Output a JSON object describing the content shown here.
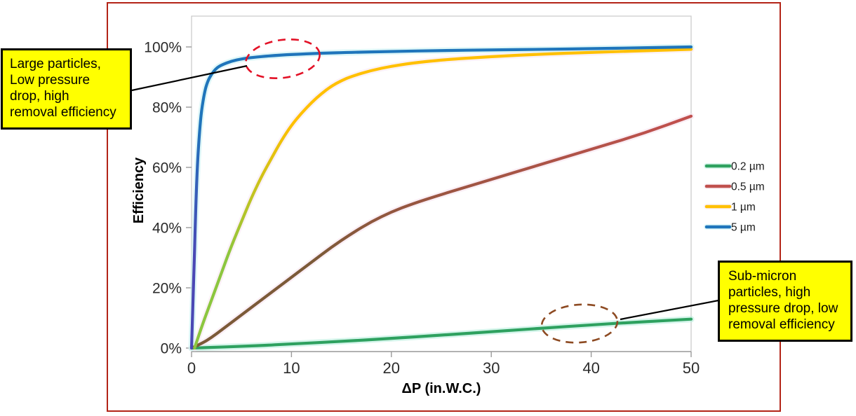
{
  "figure": {
    "border_color": "#b32417",
    "background": "#ffffff"
  },
  "callouts": {
    "left": {
      "text": "Large particles,\nLow pressure\ndrop, high\nremoval efficiency",
      "bg": "#ffff00",
      "ellipse_color": "#e31227"
    },
    "right": {
      "text": "Sub-micron\nparticles, high\npressure drop, low\nremoval efficiency",
      "bg": "#ffff00",
      "ellipse_color": "#8d4a22"
    }
  },
  "chart_data": {
    "type": "line",
    "title": "",
    "xlabel": "ΔP (in.W.C.)",
    "ylabel": "Efficiency",
    "xlim": [
      0,
      50
    ],
    "ylim": [
      0,
      100
    ],
    "x_ticks": [
      "0",
      "10",
      "20",
      "30",
      "40",
      "50"
    ],
    "x_tick_values": [
      0,
      10,
      20,
      30,
      40,
      50
    ],
    "y_tick_labels": [
      "0%",
      "20%",
      "40%",
      "60%",
      "80%",
      "100%"
    ],
    "y_tick_values": [
      0,
      20,
      40,
      60,
      80,
      100
    ],
    "grid": false,
    "legend_position": "right-outside",
    "series": [
      {
        "name": "0.2 µm",
        "color": "#2ea15f",
        "glow": "#b9eedd",
        "points": [
          [
            0,
            0
          ],
          [
            2,
            0.2
          ],
          [
            5,
            0.6
          ],
          [
            8,
            1
          ],
          [
            10,
            1.4
          ],
          [
            15,
            2.2
          ],
          [
            20,
            3.2
          ],
          [
            25,
            4.3
          ],
          [
            30,
            5.4
          ],
          [
            35,
            6.6
          ],
          [
            40,
            7.7
          ],
          [
            45,
            8.7
          ],
          [
            50,
            9.6
          ]
        ]
      },
      {
        "name": "0.5 µm",
        "color": "#c0504d",
        "color_low": "#7c5a38",
        "glow": "#f6e3ee",
        "points": [
          [
            0,
            0
          ],
          [
            1,
            1.5
          ],
          [
            2,
            3.5
          ],
          [
            3,
            6
          ],
          [
            5,
            11
          ],
          [
            7,
            16
          ],
          [
            9,
            21
          ],
          [
            10,
            23.5
          ],
          [
            12,
            28.5
          ],
          [
            14,
            33.5
          ],
          [
            16,
            38
          ],
          [
            18,
            42
          ],
          [
            20,
            45.2
          ],
          [
            22,
            47.8
          ],
          [
            25,
            51
          ],
          [
            28,
            54
          ],
          [
            30,
            56
          ],
          [
            35,
            61
          ],
          [
            40,
            66
          ],
          [
            45,
            71
          ],
          [
            50,
            77
          ]
        ]
      },
      {
        "name": "1 µm",
        "color": "#ffc000",
        "color_low": "#8cc63f",
        "glow": "#f8e7f0",
        "points": [
          [
            0.3,
            0
          ],
          [
            1,
            7
          ],
          [
            2,
            16
          ],
          [
            3,
            25
          ],
          [
            4,
            34
          ],
          [
            5,
            42
          ],
          [
            6,
            50
          ],
          [
            7,
            57
          ],
          [
            8,
            63
          ],
          [
            9,
            69
          ],
          [
            10,
            74
          ],
          [
            11,
            78
          ],
          [
            12,
            81.5
          ],
          [
            13,
            84.5
          ],
          [
            14,
            87
          ],
          [
            15,
            88.8
          ],
          [
            16,
            90.2
          ],
          [
            18,
            92.2
          ],
          [
            20,
            93.6
          ],
          [
            22,
            94.6
          ],
          [
            25,
            95.7
          ],
          [
            30,
            96.8
          ],
          [
            35,
            97.6
          ],
          [
            40,
            98.2
          ],
          [
            45,
            98.7
          ],
          [
            50,
            99.2
          ]
        ]
      },
      {
        "name": "5 µm",
        "color": "#1f75bb",
        "color_low": "#4a48b5",
        "glow": "#c9f2f4",
        "points": [
          [
            0,
            0
          ],
          [
            0.2,
            20
          ],
          [
            0.4,
            45
          ],
          [
            0.6,
            62
          ],
          [
            0.8,
            72
          ],
          [
            1,
            79
          ],
          [
            1.3,
            85
          ],
          [
            1.6,
            88.5
          ],
          [
            2,
            91
          ],
          [
            2.5,
            93
          ],
          [
            3,
            94
          ],
          [
            4,
            95.3
          ],
          [
            5,
            96
          ],
          [
            6,
            96.5
          ],
          [
            8,
            97.1
          ],
          [
            10,
            97.5
          ],
          [
            13,
            97.9
          ],
          [
            16,
            98.2
          ],
          [
            20,
            98.5
          ],
          [
            25,
            98.8
          ],
          [
            30,
            99
          ],
          [
            35,
            99.2
          ],
          [
            40,
            99.4
          ],
          [
            45,
            99.7
          ],
          [
            50,
            100
          ]
        ]
      }
    ]
  }
}
